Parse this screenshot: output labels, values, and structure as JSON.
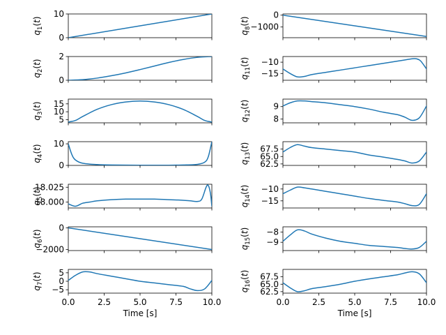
{
  "figure": {
    "line_color": "#1f77b4",
    "shared_xlabel": "Time [s]"
  },
  "chart_data": [
    {
      "type": "line",
      "subplot": "q1",
      "ylabel": "q_1(t)",
      "col": 0,
      "row": 0,
      "xlim": [
        0,
        10
      ],
      "ylim": [
        0,
        10
      ],
      "yticks": [
        0,
        10
      ],
      "xticklabels_visible": false,
      "series": [
        {
          "name": "q1",
          "x": [
            0,
            10
          ],
          "y": [
            0,
            10
          ]
        }
      ]
    },
    {
      "type": "line",
      "subplot": "q2",
      "ylabel": "q_2(t)",
      "col": 0,
      "row": 1,
      "xlim": [
        0,
        10
      ],
      "ylim": [
        0,
        2
      ],
      "yticks": [
        0,
        2
      ],
      "xticklabels_visible": false,
      "series": [
        {
          "name": "q2",
          "x": [
            0,
            1,
            2,
            3,
            4,
            5,
            6,
            7,
            8,
            9,
            10
          ],
          "y": [
            0.0,
            0.05,
            0.18,
            0.38,
            0.62,
            0.9,
            1.2,
            1.5,
            1.75,
            1.93,
            2.0
          ]
        }
      ]
    },
    {
      "type": "line",
      "subplot": "q3",
      "ylabel": "q_3(t)",
      "col": 0,
      "row": 2,
      "xlim": [
        0,
        10
      ],
      "ylim": [
        3,
        18
      ],
      "yticks": [
        5,
        10,
        15
      ],
      "xticklabels_visible": false,
      "series": [
        {
          "name": "q3",
          "x": [
            0,
            0.5,
            1,
            2,
            3,
            4,
            5,
            6,
            7,
            8,
            9,
            9.5,
            10
          ],
          "y": [
            3.5,
            4.5,
            7,
            11.5,
            14.5,
            16.2,
            16.8,
            16.2,
            14.5,
            11.5,
            7,
            4.5,
            3.5
          ]
        }
      ]
    },
    {
      "type": "line",
      "subplot": "q4",
      "ylabel": "q_4(t)",
      "col": 0,
      "row": 3,
      "xlim": [
        0,
        10
      ],
      "ylim": [
        0,
        11
      ],
      "yticks": [
        0,
        10
      ],
      "xticklabels_visible": false,
      "series": [
        {
          "name": "q4",
          "x": [
            0,
            0.25,
            0.5,
            1,
            2,
            3,
            5,
            7,
            8,
            9,
            9.5,
            9.75,
            10
          ],
          "y": [
            10,
            5,
            2.5,
            1,
            0.4,
            0.2,
            0.1,
            0.1,
            0.2,
            0.5,
            1.5,
            4,
            11
          ]
        }
      ]
    },
    {
      "type": "line",
      "subplot": "q5",
      "ylabel": "q_5(t)",
      "col": 0,
      "row": 4,
      "xlim": [
        0,
        10
      ],
      "ylim": [
        17.99,
        18.03
      ],
      "yticks": [
        18.0,
        18.025
      ],
      "yticklabels": [
        "18.000",
        "18.025"
      ],
      "xticklabels_visible": false,
      "series": [
        {
          "name": "q5",
          "x": [
            0,
            0.5,
            1,
            1.5,
            2,
            3,
            4,
            5,
            6,
            7,
            8,
            8.5,
            9,
            9.3,
            9.6,
            9.75,
            9.9,
            10
          ],
          "y": [
            17.997,
            17.993,
            17.998,
            18.0,
            18.002,
            18.004,
            18.005,
            18.005,
            18.005,
            18.004,
            18.003,
            18.002,
            18.001,
            18.005,
            18.025,
            18.028,
            18.015,
            17.993
          ]
        }
      ]
    },
    {
      "type": "line",
      "subplot": "q6",
      "ylabel": "q_6(t)",
      "col": 0,
      "row": 5,
      "xlim": [
        0,
        10
      ],
      "ylim": [
        -2100,
        100
      ],
      "yticks": [
        -2000,
        0
      ],
      "yticklabels": [
        "−2000",
        "0"
      ],
      "xticklabels_visible": false,
      "series": [
        {
          "name": "q6",
          "x": [
            0,
            10
          ],
          "y": [
            0,
            -2000
          ]
        }
      ]
    },
    {
      "type": "line",
      "subplot": "q7",
      "ylabel": "q_7(t)",
      "col": 0,
      "row": 6,
      "xlim": [
        0,
        10
      ],
      "ylim": [
        -7,
        7
      ],
      "yticks": [
        -5,
        0,
        5
      ],
      "yticklabels": [
        "−5",
        "0",
        "5"
      ],
      "xticklabels_visible": true,
      "xticks": [
        0,
        2.5,
        5,
        7.5,
        10
      ],
      "xticklabels": [
        "0.0",
        "2.5",
        "5.0",
        "7.5",
        "10.0"
      ],
      "xlabel": "Time [s]",
      "series": [
        {
          "name": "q7",
          "x": [
            0,
            0.5,
            1,
            1.5,
            2,
            3,
            4,
            5,
            6,
            7,
            8,
            8.5,
            9,
            9.5,
            10
          ],
          "y": [
            0.5,
            3.5,
            5.5,
            5.5,
            4.5,
            3,
            1.5,
            0,
            -1,
            -2,
            -3,
            -4.5,
            -5.5,
            -4.5,
            0.5
          ]
        }
      ]
    },
    {
      "type": "line",
      "subplot": "q8",
      "ylabel": "q_8(t)",
      "col": 1,
      "row": 0,
      "xlim": [
        0,
        10
      ],
      "ylim": [
        -1900,
        100
      ],
      "yticks": [
        -1000,
        0
      ],
      "yticklabels": [
        "−1000",
        "0"
      ],
      "xticklabels_visible": false,
      "series": [
        {
          "name": "q8",
          "x": [
            0,
            10
          ],
          "y": [
            0,
            -1800
          ]
        }
      ]
    },
    {
      "type": "line",
      "subplot": "q11",
      "ylabel": "q_11(t)",
      "col": 1,
      "row": 1,
      "xlim": [
        0,
        10
      ],
      "ylim": [
        -18,
        -7.5
      ],
      "yticks": [
        -15,
        -10
      ],
      "yticklabels": [
        "−15",
        "−10"
      ],
      "xticklabels_visible": false,
      "series": [
        {
          "name": "q11",
          "x": [
            0,
            0.5,
            1,
            1.5,
            2,
            3,
            4,
            5,
            6,
            7,
            8,
            8.5,
            9,
            9.3,
            9.6,
            10
          ],
          "y": [
            -13,
            -15,
            -16.5,
            -16.3,
            -15.5,
            -14.5,
            -13.5,
            -12.5,
            -11.5,
            -10.5,
            -9.5,
            -9,
            -8.5,
            -8.5,
            -9.5,
            -13
          ]
        }
      ]
    },
    {
      "type": "line",
      "subplot": "q12",
      "ylabel": "q_12(t)",
      "col": 1,
      "row": 2,
      "xlim": [
        0,
        10
      ],
      "ylim": [
        7.7,
        9.6
      ],
      "yticks": [
        8,
        9
      ],
      "xticklabels_visible": false,
      "series": [
        {
          "name": "q12",
          "x": [
            0,
            0.5,
            1,
            1.5,
            2,
            3,
            4,
            5,
            6,
            7,
            8,
            8.5,
            9,
            9.5,
            10
          ],
          "y": [
            9.05,
            9.3,
            9.45,
            9.45,
            9.4,
            9.3,
            9.15,
            9.0,
            8.8,
            8.55,
            8.35,
            8.15,
            7.9,
            8.1,
            9.05
          ]
        }
      ]
    },
    {
      "type": "line",
      "subplot": "q13",
      "ylabel": "q_13(t)",
      "col": 1,
      "row": 3,
      "xlim": [
        0,
        10
      ],
      "ylim": [
        62,
        70
      ],
      "yticks": [
        62.5,
        65.0,
        67.5
      ],
      "yticklabels": [
        "62.5",
        "65.0",
        "67.5"
      ],
      "xticklabels_visible": false,
      "series": [
        {
          "name": "q13",
          "x": [
            0,
            0.5,
            1,
            1.5,
            2,
            3,
            4,
            5,
            6,
            7,
            8,
            8.5,
            9,
            9.5,
            10
          ],
          "y": [
            66.5,
            68,
            69,
            68.5,
            68,
            67.5,
            67,
            66.5,
            65.5,
            64.8,
            64,
            63.5,
            62.8,
            63.5,
            66.5
          ]
        }
      ]
    },
    {
      "type": "line",
      "subplot": "q14",
      "ylabel": "q_14(t)",
      "col": 1,
      "row": 4,
      "xlim": [
        0,
        10
      ],
      "ylim": [
        -18,
        -8
      ],
      "yticks": [
        -15,
        -10
      ],
      "yticklabels": [
        "−15",
        "−10"
      ],
      "xticklabels_visible": false,
      "series": [
        {
          "name": "q14",
          "x": [
            0,
            0.5,
            1,
            1.5,
            2,
            3,
            4,
            5,
            6,
            7,
            8,
            8.5,
            9,
            9.5,
            10
          ],
          "y": [
            -12,
            -10.5,
            -9.2,
            -9.5,
            -10,
            -11,
            -12,
            -13,
            -14,
            -14.8,
            -15.5,
            -16.2,
            -17,
            -16.5,
            -12
          ]
        }
      ]
    },
    {
      "type": "line",
      "subplot": "q15",
      "ylabel": "q_15(t)",
      "col": 1,
      "row": 5,
      "xlim": [
        0,
        10
      ],
      "ylim": [
        -9.8,
        -7.5
      ],
      "yticks": [
        -9,
        -8
      ],
      "yticklabels": [
        "−9",
        "−8"
      ],
      "xticklabels_visible": false,
      "series": [
        {
          "name": "q15",
          "x": [
            0,
            0.5,
            1,
            1.5,
            2,
            3,
            4,
            5,
            6,
            7,
            8,
            8.5,
            9,
            9.5,
            10
          ],
          "y": [
            -8.9,
            -8.3,
            -7.8,
            -7.9,
            -8.2,
            -8.6,
            -8.9,
            -9.1,
            -9.3,
            -9.4,
            -9.5,
            -9.6,
            -9.65,
            -9.5,
            -8.9
          ]
        }
      ]
    },
    {
      "type": "line",
      "subplot": "q16",
      "ylabel": "q_16(t)",
      "col": 1,
      "row": 6,
      "xlim": [
        0,
        10
      ],
      "ylim": [
        62,
        70
      ],
      "yticks": [
        62.5,
        65.0,
        67.5
      ],
      "yticklabels": [
        "62.5",
        "65.0",
        "67.5"
      ],
      "xticklabels_visible": true,
      "xticks": [
        0,
        2.5,
        5,
        7.5,
        10
      ],
      "xticklabels": [
        "0.0",
        "2.5",
        "5.0",
        "7.5",
        "10.0"
      ],
      "xlabel": "Time [s]",
      "series": [
        {
          "name": "q16",
          "x": [
            0,
            0.5,
            1,
            1.5,
            2,
            3,
            4,
            5,
            6,
            7,
            8,
            8.5,
            9,
            9.5,
            10
          ],
          "y": [
            65.5,
            63.8,
            62.5,
            62.8,
            63.5,
            64.2,
            65,
            66,
            66.8,
            67.5,
            68.2,
            68.8,
            69.2,
            68.5,
            65.5
          ]
        }
      ]
    }
  ]
}
